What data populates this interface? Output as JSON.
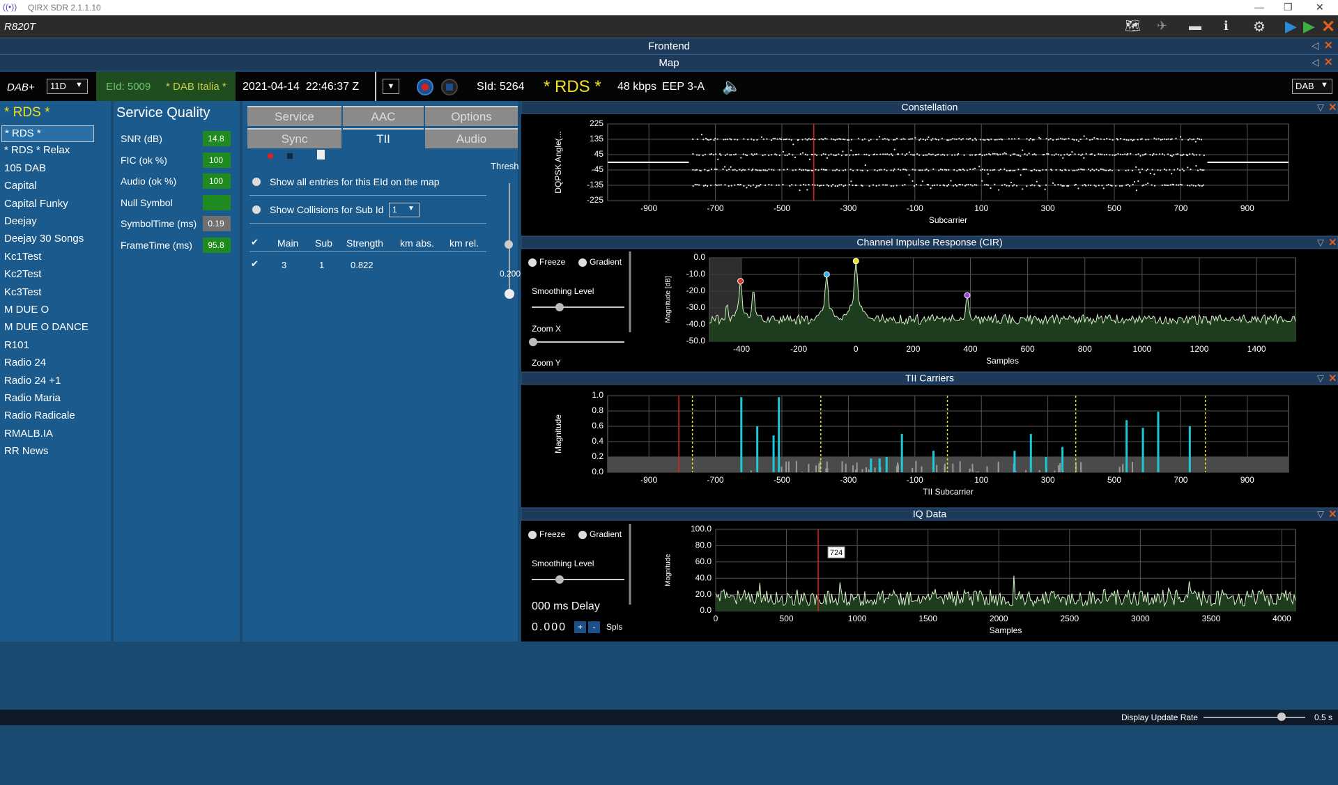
{
  "window": {
    "title": "QIRX SDR 2.1.1.10",
    "device": "R820T"
  },
  "sections": [
    "Frontend",
    "Map"
  ],
  "toolbar": {
    "mode": "DAB+",
    "channel": "11D",
    "eid": "EId: 5009",
    "ensemble": "* DAB Italia *",
    "datetime": "2021-04-14  22:46:37 Z",
    "sid": "SId: 5264",
    "service": "* RDS *",
    "bitrate": "48 kbps",
    "protection": "EEP 3-A",
    "band": "DAB"
  },
  "services": {
    "title": "* RDS *",
    "selected": 0,
    "items": [
      "* RDS *",
      "* RDS * Relax",
      "105 DAB",
      "Capital",
      "Capital Funky",
      "Deejay",
      "Deejay 30 Songs",
      "Kc1Test",
      "Kc2Test",
      "Kc3Test",
      "M DUE O",
      "M DUE O DANCE",
      "R101",
      "Radio 24",
      "Radio 24 +1",
      "Radio Maria",
      "Radio Radicale",
      "RMALB.IA",
      "RR News"
    ]
  },
  "service_quality": {
    "title": "Service Quality",
    "rows": [
      {
        "label": "SNR (dB)",
        "value": 14.8
      },
      {
        "label": "FIC (ok %)",
        "value": 100
      },
      {
        "label": "Audio (ok %)",
        "value": 100
      },
      {
        "label": "Null Symbol"
      },
      {
        "label": "SymbolTime (ms)",
        "value": 0.19
      },
      {
        "label": "FrameTime (ms)",
        "value": 95.8
      }
    ]
  },
  "tii": {
    "tabs": [
      "Service",
      "AAC",
      "Options",
      "Sync",
      "TII",
      "Audio"
    ],
    "active": "TII",
    "options": [
      "Show all entries for this EId on the map",
      "Show Collisions for Sub Id"
    ],
    "sub_id": 1,
    "columns": [
      "Main",
      "Sub",
      "Strength",
      "km abs.",
      "km rel."
    ],
    "rows": [
      [
        3,
        1,
        0.822
      ]
    ],
    "threshold_label": "Thresh",
    "threshold": "0.200"
  },
  "charts": [
    {
      "title": "Constellation",
      "type": "scatter",
      "xlabel": "Subcarrier",
      "ylabel": "DQPSK Angle(...",
      "xlim": [
        -1024,
        1024
      ],
      "xticks": [
        -900,
        -700,
        -500,
        -300,
        -100,
        100,
        300,
        500,
        700,
        900
      ],
      "ylim": [
        -225,
        225
      ],
      "yticks": [
        225,
        135,
        45,
        -45,
        -135,
        -225
      ],
      "marker": {
        "x": -404
      }
    },
    {
      "title": "Channel Impulse Response (CIR)",
      "type": "line",
      "xlabel": "Samples",
      "ylabel": "Magnitude [dB]",
      "xlim": [
        -512,
        1536
      ],
      "xticks": [
        -400,
        -200,
        0,
        200,
        400,
        600,
        800,
        1000,
        1200,
        1400
      ],
      "ylim": [
        -50,
        0
      ],
      "yticks": [
        {
          "value": 0,
          "label": "0.0"
        },
        {
          "value": -10,
          "label": "-10.0"
        },
        {
          "value": -20,
          "label": "-20.0"
        },
        {
          "value": -30,
          "label": "-30.0"
        },
        {
          "value": -40,
          "label": "-40.0"
        },
        {
          "value": -50,
          "label": "-50.0"
        }
      ],
      "controls": {
        "freeze": "Freeze",
        "gradient": "Gradient",
        "smoothing": "Smoothing Level",
        "zoom_x": "Zoom X",
        "zoom_y": "Zoom Y"
      }
    },
    {
      "title": "TII Carriers",
      "type": "bar",
      "xlabel": "TII Subcarrier",
      "ylabel": "Magnitude",
      "xlim": [
        -1024,
        1024
      ],
      "xticks": [
        -900,
        -700,
        -500,
        -300,
        -100,
        100,
        300,
        500,
        700,
        900
      ],
      "ylim": [
        0,
        1
      ],
      "yticks": [
        {
          "value": 0,
          "label": "0.0"
        },
        {
          "value": 0.2,
          "label": "0.2"
        },
        {
          "value": 0.4,
          "label": "0.4"
        },
        {
          "value": 0.6,
          "label": "0.6"
        },
        {
          "value": 0.8,
          "label": "0.8"
        },
        {
          "value": 1,
          "label": "1.0"
        }
      ],
      "color": "#1fc8d8",
      "x": [
        -622,
        -574,
        -525,
        -509,
        -232,
        -206,
        -185,
        -139,
        -44,
        200,
        249,
        295,
        344,
        537,
        586,
        632,
        727
      ],
      "values": [
        0.98,
        0.6,
        0.48,
        0.98,
        0.18,
        0.18,
        0.2,
        0.5,
        0.28,
        0.28,
        0.5,
        0.2,
        0.33,
        0.68,
        0.58,
        0.79,
        0.6
      ],
      "marker": {
        "x": -810
      },
      "guides": [
        -769,
        -383,
        -2,
        384,
        774
      ]
    },
    {
      "title": "IQ Data",
      "type": "line",
      "xlabel": "Samples",
      "ylabel": "Magnitude",
      "xlim": [
        0,
        4096
      ],
      "xticks": [
        0,
        500,
        1000,
        1500,
        2000,
        2500,
        3000,
        3500,
        4000
      ],
      "ylim": [
        0,
        100
      ],
      "yticks": [
        {
          "value": 0,
          "label": "0.0"
        },
        {
          "value": 20,
          "label": "20.0"
        },
        {
          "value": 40,
          "label": "40.0"
        },
        {
          "value": 60,
          "label": "60.0"
        },
        {
          "value": 80,
          "label": "80.0"
        },
        {
          "value": 100,
          "label": "100.0"
        }
      ],
      "marker": {
        "x": 724
      },
      "controls": {
        "freeze": "Freeze",
        "gradient": "Gradient",
        "smoothing": "Smoothing Level",
        "delay": "000 ms Delay",
        "offset": "0.000",
        "plus": "+",
        "minus": "-",
        "unit": "Spls"
      }
    }
  ],
  "status": {
    "label": "Display Update Rate",
    "value": "0.5 s"
  }
}
